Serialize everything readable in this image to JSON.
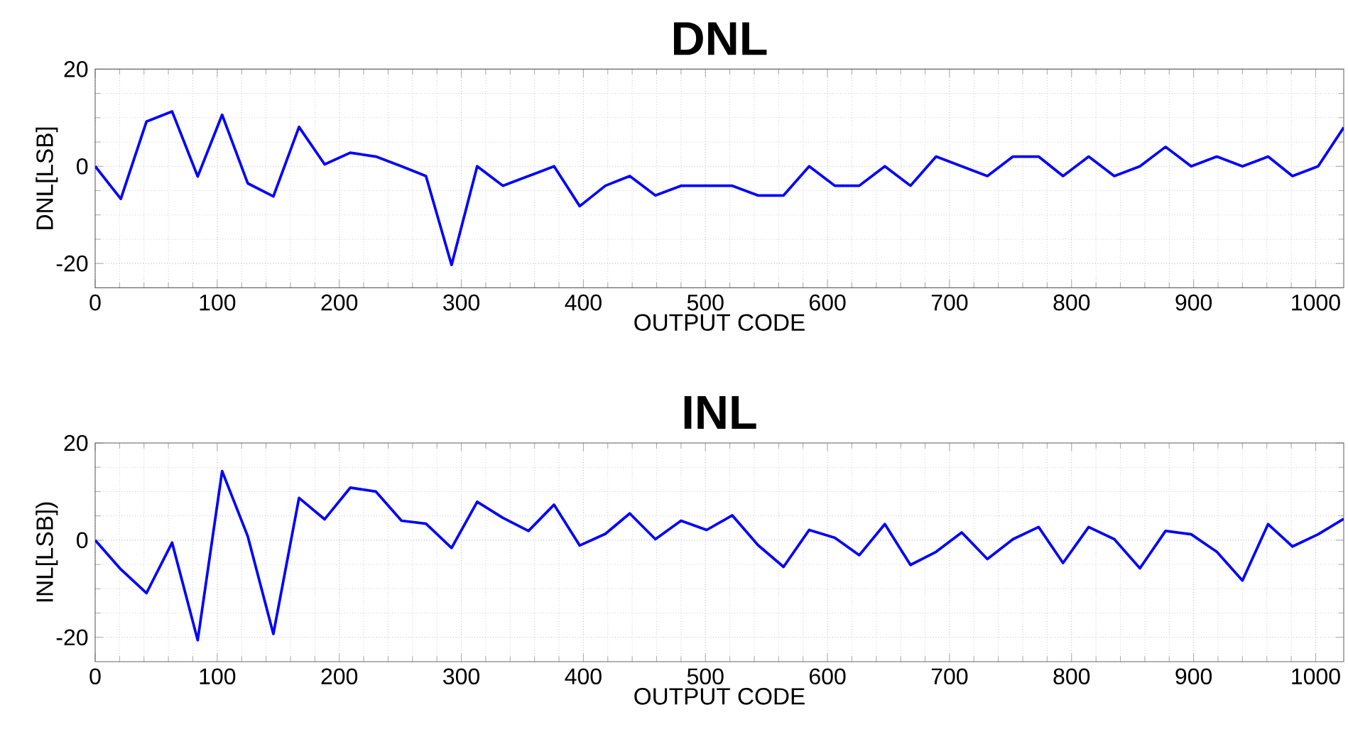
{
  "chart_data": [
    {
      "type": "line",
      "title": "DNL",
      "xlabel": "OUTPUT CODE",
      "ylabel": "DNL[LSB]",
      "x": [
        0,
        21,
        42,
        63,
        84,
        104,
        125,
        146,
        167,
        188,
        209,
        230,
        251,
        271,
        292,
        313,
        334,
        355,
        376,
        397,
        418,
        438,
        459,
        480,
        501,
        522,
        543,
        564,
        585,
        606,
        626,
        647,
        668,
        689,
        710,
        731,
        752,
        773,
        793,
        814,
        835,
        856,
        877,
        898,
        919,
        940,
        961,
        981,
        1002,
        1023
      ],
      "series": [
        {
          "color": "#0000ff",
          "values": [
            0,
            -6.7,
            9.2,
            11.3,
            -2.1,
            10.6,
            -3.5,
            -6.2,
            8.1,
            0.4,
            2.8,
            2.0,
            0,
            -2.0,
            -20.3,
            0,
            -4,
            -2,
            0,
            -8.2,
            -4,
            -2,
            -6,
            -4,
            -4,
            -4,
            -6,
            -6,
            0,
            -4,
            -4,
            0,
            -4,
            2,
            0,
            -2,
            2,
            2,
            -2,
            2,
            -2,
            0,
            4,
            0,
            2,
            0,
            2,
            -2,
            0,
            8
          ]
        }
      ],
      "xlim": [
        0,
        1023
      ],
      "ylim": [
        -25,
        20
      ],
      "xticks": [
        0,
        100,
        200,
        300,
        400,
        500,
        600,
        700,
        800,
        900,
        1000
      ],
      "yticks": [
        -20,
        0,
        20
      ],
      "grid": true
    },
    {
      "type": "line",
      "title": "INL",
      "xlabel": "OUTPUT CODE",
      "ylabel": "INL[LSB])",
      "x": [
        0,
        21,
        42,
        63,
        84,
        104,
        125,
        146,
        167,
        188,
        209,
        230,
        251,
        271,
        292,
        313,
        334,
        355,
        376,
        397,
        418,
        438,
        459,
        480,
        501,
        522,
        543,
        564,
        585,
        606,
        626,
        647,
        668,
        689,
        710,
        731,
        752,
        773,
        793,
        814,
        835,
        856,
        877,
        898,
        919,
        940,
        961,
        981,
        1002,
        1023
      ],
      "series": [
        {
          "color": "#0000ff",
          "values": [
            0,
            -6,
            -10.9,
            -0.5,
            -20.6,
            14.2,
            0.8,
            -19.3,
            8.7,
            4.3,
            10.8,
            10,
            4,
            3.4,
            -1.6,
            7.9,
            4.6,
            1.9,
            7.3,
            -1.1,
            1.3,
            5.5,
            0.2,
            4,
            2.1,
            5.1,
            -1,
            -5.5,
            2.1,
            0.5,
            -3.1,
            3.3,
            -5.1,
            -2.4,
            1.6,
            -3.9,
            0.2,
            2.7,
            -4.7,
            2.7,
            0.2,
            -5.8,
            1.9,
            1.2,
            -2.4,
            -8.3,
            3.3,
            -1.3,
            1.2,
            4.4
          ]
        }
      ],
      "xlim": [
        0,
        1023
      ],
      "ylim": [
        -25,
        20
      ],
      "xticks": [
        0,
        100,
        200,
        300,
        400,
        500,
        600,
        700,
        800,
        900,
        1000
      ],
      "yticks": [
        -20,
        0,
        20
      ],
      "grid": true
    }
  ]
}
